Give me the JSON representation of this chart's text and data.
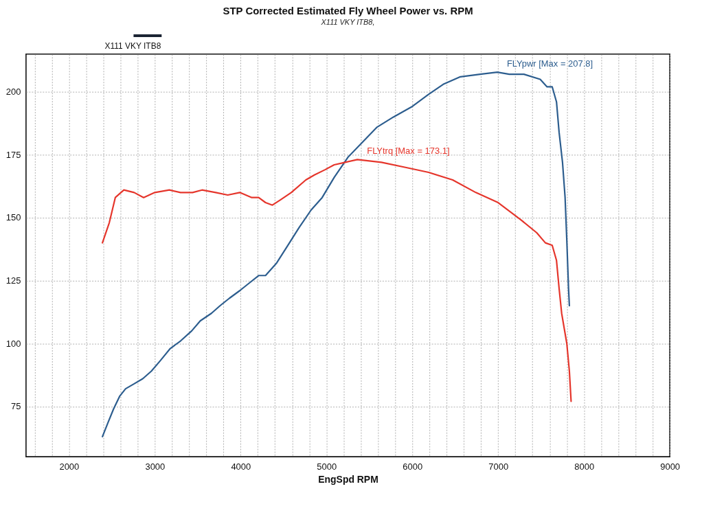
{
  "chart_data": {
    "type": "line",
    "title": "STP Corrected Estimated Fly Wheel Power vs. RPM",
    "subtitle": "X111 VKY ITB8,",
    "xlabel": "EngSpd RPM",
    "annotations": [
      "X111 VKY ITB8"
    ],
    "xlim": [
      1500,
      9000
    ],
    "xticks": [
      {
        "value": 1600,
        "label": null
      },
      {
        "value": 1800,
        "label": null
      },
      2000,
      {
        "value": 2200,
        "label": null
      },
      {
        "value": 2400,
        "label": null
      },
      {
        "value": 2600,
        "label": null
      },
      {
        "value": 2800,
        "label": null
      },
      3000,
      {
        "value": 3200,
        "label": null
      },
      {
        "value": 3400,
        "label": null
      },
      {
        "value": 3600,
        "label": null
      },
      {
        "value": 3800,
        "label": null
      },
      4000,
      {
        "value": 4200,
        "label": null
      },
      {
        "value": 4400,
        "label": null
      },
      {
        "value": 4600,
        "label": null
      },
      {
        "value": 4800,
        "label": null
      },
      5000,
      {
        "value": 5200,
        "label": null
      },
      {
        "value": 5400,
        "label": null
      },
      {
        "value": 5600,
        "label": null
      },
      {
        "value": 5800,
        "label": null
      },
      6000,
      {
        "value": 6200,
        "label": null
      },
      {
        "value": 6400,
        "label": null
      },
      {
        "value": 6600,
        "label": null
      },
      {
        "value": 6800,
        "label": null
      },
      7000,
      {
        "value": 7200,
        "label": null
      },
      {
        "value": 7400,
        "label": null
      },
      {
        "value": 7600,
        "label": null
      },
      {
        "value": 7800,
        "label": null
      },
      8000,
      {
        "value": 8200,
        "label": null
      },
      {
        "value": 8400,
        "label": null
      },
      {
        "value": 8600,
        "label": null
      },
      {
        "value": 8800,
        "label": null
      },
      9000
    ],
    "ylim": [
      55,
      215
    ],
    "yticks": [
      75,
      100,
      125,
      150,
      175,
      200
    ],
    "grid": true,
    "line_style": "solid",
    "series": [
      {
        "name": "FLYpwr [Max = 207.8]",
        "color": "#2c5d8e",
        "x": [
          2390,
          2460,
          2520,
          2590,
          2660,
          2760,
          2860,
          2960,
          3060,
          3180,
          3300,
          3430,
          3530,
          3660,
          3760,
          3870,
          3990,
          4100,
          4210,
          4290,
          4420,
          4550,
          4680,
          4820,
          4950,
          5090,
          5250,
          5420,
          5590,
          5780,
          5990,
          6190,
          6360,
          6560,
          6790,
          6990,
          7130,
          7300,
          7490,
          7570,
          7630,
          7680,
          7710,
          7750,
          7780,
          7800,
          7820,
          7830
        ],
        "values": [
          63,
          69,
          74,
          79,
          82,
          84,
          86,
          89,
          93,
          98,
          101,
          105,
          109,
          112,
          115,
          118,
          121,
          124,
          127,
          127,
          132,
          139,
          146,
          153,
          158,
          166,
          174,
          180,
          186,
          190,
          194,
          199,
          203,
          206,
          207,
          207.8,
          207,
          207,
          205,
          202,
          202,
          196,
          184,
          172,
          158,
          141,
          122,
          115
        ]
      },
      {
        "name": "FLYtrq [Max = 173.1]",
        "color": "#e5352b",
        "x": [
          2390,
          2470,
          2540,
          2640,
          2760,
          2870,
          3000,
          3170,
          3300,
          3440,
          3550,
          3710,
          3850,
          3990,
          4130,
          4210,
          4290,
          4370,
          4460,
          4590,
          4760,
          4860,
          4980,
          5090,
          5220,
          5360,
          5640,
          5920,
          6190,
          6470,
          6740,
          7000,
          7270,
          7450,
          7550,
          7630,
          7680,
          7710,
          7740,
          7800,
          7830,
          7850
        ],
        "values": [
          140,
          148,
          158,
          161,
          160,
          158,
          160,
          161,
          160,
          160,
          161,
          160,
          159,
          160,
          158,
          158,
          156,
          155,
          157,
          160,
          165,
          167,
          169,
          171,
          172,
          173.1,
          172,
          170,
          168,
          165,
          160,
          156,
          149,
          144,
          140,
          139,
          133,
          122,
          112,
          100,
          89,
          77
        ]
      }
    ]
  }
}
